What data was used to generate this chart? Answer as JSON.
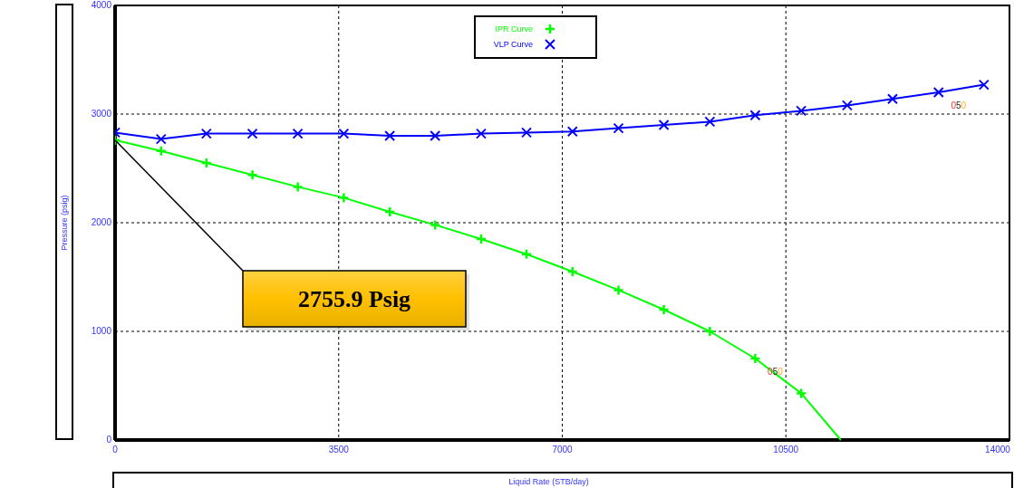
{
  "chart_data": {
    "type": "line",
    "xlabel": "Liquid Rate  (STB/day)",
    "ylabel": "Pressure  (psig)",
    "xlim": [
      0,
      14000
    ],
    "xticks": [
      0,
      3500,
      7000,
      10500,
      14000
    ],
    "ylim": [
      0,
      4000
    ],
    "yticks": [
      0,
      1000,
      2000,
      3000,
      4000
    ],
    "grid": true,
    "legend": "top",
    "line_style": "solid",
    "series": [
      {
        "name": "IPR Curve",
        "color": "#00ff00",
        "marker": "plus",
        "x": [
          0,
          720,
          1430,
          2150,
          2860,
          3580,
          4300,
          5010,
          5730,
          6440,
          7160,
          7880,
          8590,
          9310,
          10020,
          10740,
          11360
        ],
        "values": [
          2760,
          2660,
          2550,
          2440,
          2330,
          2230,
          2100,
          1980,
          1850,
          1710,
          1550,
          1380,
          1200,
          1000,
          750,
          430,
          0
        ]
      },
      {
        "name": "VLP Curve",
        "color": "#0000ff",
        "marker": "cross",
        "x": [
          0,
          720,
          1430,
          2150,
          2860,
          3580,
          4300,
          5010,
          5730,
          6440,
          7160,
          7880,
          8590,
          9310,
          10020,
          10740,
          11460,
          12170,
          12890,
          13600
        ],
        "values": [
          2830,
          2770,
          2820,
          2820,
          2820,
          2820,
          2800,
          2800,
          2820,
          2830,
          2840,
          2870,
          2900,
          2930,
          2990,
          3030,
          3080,
          3140,
          3200,
          3270
        ]
      }
    ],
    "annotations": [
      "2755.9 Psig",
      {
        "text": "050",
        "x": 10020,
        "y": 750
      },
      {
        "text": "050",
        "x": 12890,
        "y": 3200
      }
    ]
  }
}
